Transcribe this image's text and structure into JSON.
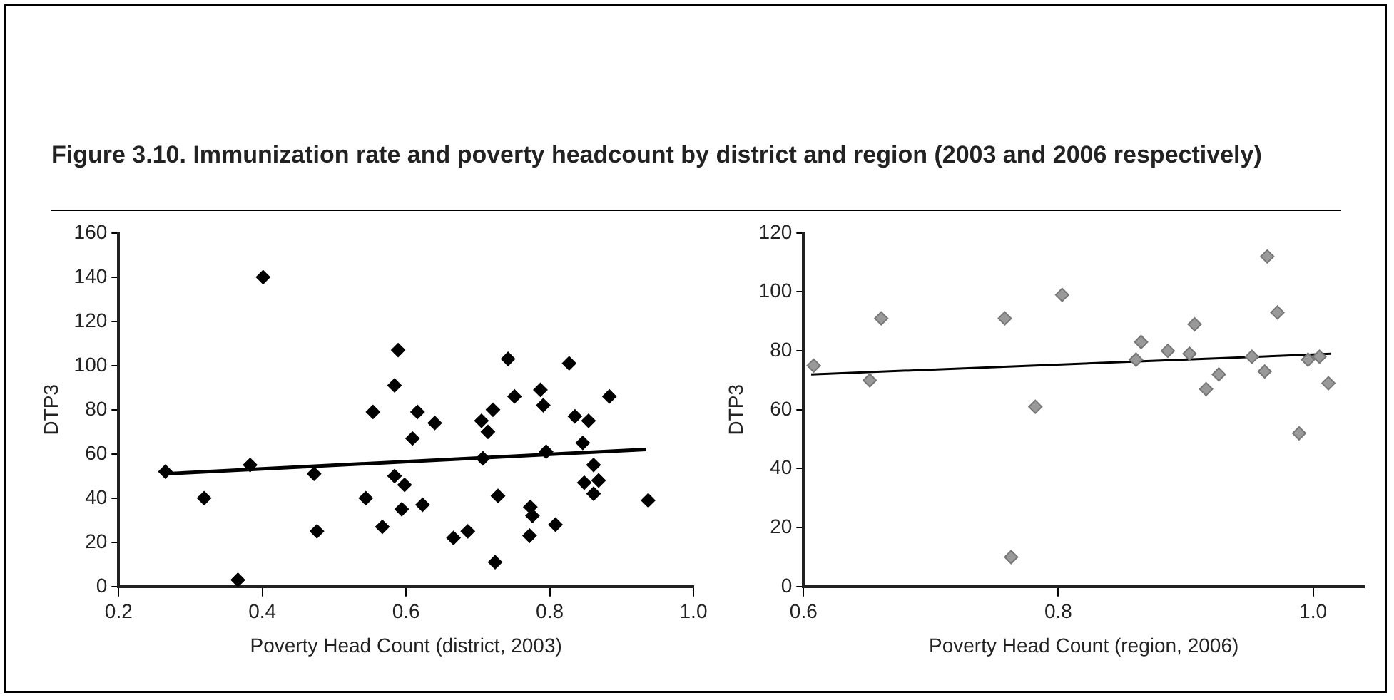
{
  "chart_data": [
    {
      "type": "scatter",
      "title": "Figure 3.10. Immunization rate and poverty headcount by district and region (2003 and 2006 respectively)",
      "xlabel": "Poverty Head Count (district, 2003)",
      "ylabel": "DTP3",
      "xlim": [
        0.2,
        1.0
      ],
      "xticks": [
        0.2,
        0.4,
        0.6,
        0.8,
        {
          "value": 1.0,
          "label": "1.0"
        }
      ],
      "ylim": [
        0,
        160
      ],
      "yticks": [
        0,
        20,
        40,
        60,
        80,
        100,
        120,
        140,
        160
      ],
      "grid": false,
      "legend": false,
      "marker": "diamond",
      "series": [
        {
          "color": "#000000",
          "x": [
            0.265,
            0.319,
            0.366,
            0.383,
            0.401,
            0.472,
            0.476,
            0.544,
            0.554,
            0.567,
            0.584,
            0.589,
            0.584,
            0.594,
            0.598,
            0.609,
            0.616,
            0.623,
            0.64,
            0.666,
            0.686,
            0.705,
            0.707,
            0.714,
            0.721,
            0.724,
            0.728,
            0.742,
            0.751,
            0.772,
            0.773,
            0.776,
            0.787,
            0.791,
            0.795,
            0.808,
            0.827,
            0.835,
            0.846,
            0.848,
            0.854,
            0.861,
            0.861,
            0.868,
            0.883,
            0.937
          ],
          "values": [
            52,
            40,
            3,
            55,
            140,
            51,
            25,
            40,
            79,
            27,
            91,
            107,
            50,
            35,
            46,
            67,
            79,
            37,
            74,
            22,
            25,
            75,
            58,
            70,
            80,
            11,
            41,
            103,
            86,
            23,
            36,
            32,
            89,
            82,
            61,
            28,
            101,
            77,
            65,
            47,
            75,
            55,
            42,
            48,
            86,
            39
          ]
        },
        {
          "type": "line",
          "color": "#000000",
          "marker": "none",
          "x": [
            0.265,
            0.934
          ],
          "values": [
            51,
            62
          ]
        }
      ]
    },
    {
      "type": "scatter",
      "xlabel": "Poverty Head Count (region, 2006)",
      "ylabel": "DTP3",
      "xlim": [
        0.6,
        1.04
      ],
      "xticks": [
        0.6,
        0.8,
        {
          "value": 1.0,
          "label": "1.0"
        }
      ],
      "ylim": [
        0,
        120
      ],
      "yticks": [
        0,
        20,
        40,
        60,
        80,
        100,
        120
      ],
      "grid": false,
      "legend": false,
      "marker": "diamond",
      "series": [
        {
          "color": "#999999",
          "x": [
            0.608,
            0.652,
            0.661,
            0.758,
            0.763,
            0.782,
            0.803,
            0.861,
            0.865,
            0.886,
            0.903,
            0.907,
            0.916,
            0.926,
            0.952,
            0.962,
            0.964,
            0.972,
            0.989,
            0.996,
            1.005,
            1.012
          ],
          "values": [
            75,
            70,
            91,
            91,
            10,
            61,
            99,
            77,
            83,
            80,
            79,
            89,
            67,
            72,
            78,
            73,
            112,
            93,
            52,
            77,
            78,
            69
          ]
        },
        {
          "type": "line",
          "color": "#000000",
          "marker": "none",
          "x": [
            0.606,
            1.014
          ],
          "values": [
            72,
            79
          ]
        }
      ]
    }
  ]
}
